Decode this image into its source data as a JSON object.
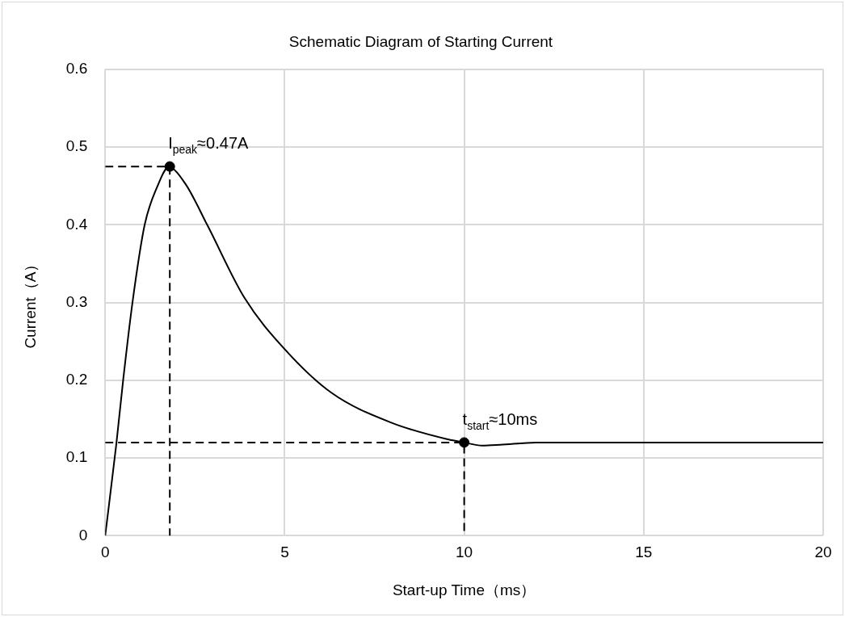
{
  "chart_data": {
    "type": "line",
    "title": "Schematic Diagram of Starting Current",
    "xlabel": "Start-up Time（ms）",
    "ylabel": "Current（A）",
    "xlim": [
      0,
      20
    ],
    "xticks": [
      0,
      5,
      10,
      15,
      20
    ],
    "ylim": [
      0,
      0.6
    ],
    "yticks": [
      0,
      0.1,
      0.2,
      0.3,
      0.4,
      0.5,
      0.6
    ],
    "grid": true,
    "legend": false,
    "series": [
      {
        "color": "#000000",
        "line_style": "solid",
        "marker": "none",
        "x": [
          0,
          0.31,
          0.5,
          0.76,
          1.1,
          1.45,
          1.77,
          2.23,
          2.84,
          3.88,
          5,
          6.3,
          8,
          9.55,
          10,
          10.5,
          11,
          12,
          20
        ],
        "values": [
          0,
          0.118,
          0.2,
          0.3,
          0.4,
          0.449,
          0.474,
          0.453,
          0.4,
          0.306,
          0.24,
          0.184,
          0.145,
          0.124,
          0.12,
          0.116,
          0.117,
          0.12,
          0.12
        ]
      },
      {
        "color": "#000000",
        "line_style": "dashed",
        "marker": "none",
        "x": [
          0,
          1.8,
          1.8
        ],
        "values": [
          0.475,
          0.475,
          0
        ]
      },
      {
        "color": "#000000",
        "line_style": "dashed",
        "marker": "none",
        "x": [
          0,
          10,
          10
        ],
        "values": [
          0.12,
          0.12,
          0
        ]
      },
      {
        "type": "scatter",
        "color": "#000000",
        "marker": "circle",
        "x": [
          1.8,
          10
        ],
        "values": [
          0.475,
          0.12
        ]
      }
    ],
    "annotations": [
      {
        "text": "I$_{peak}$≈0.47A",
        "x": 1.8,
        "y": 0.475
      },
      {
        "text": "t$_{start}$≈10ms",
        "x": 10,
        "y": 0.12
      }
    ]
  }
}
